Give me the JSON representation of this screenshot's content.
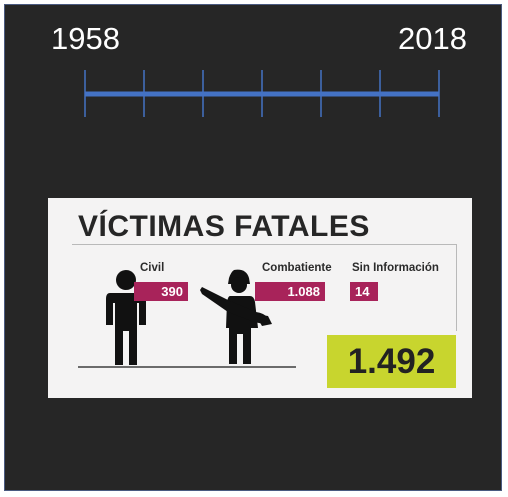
{
  "timeline": {
    "start_year": "1958",
    "end_year": "2018",
    "line_color": "#4472c4",
    "tick_count": 7
  },
  "card": {
    "title": "VÍCTIMAS FATALES",
    "civil": {
      "label": "Civil",
      "value": "390"
    },
    "combatiente": {
      "label": "Combatiente",
      "value": "1.088"
    },
    "sin_informacion": {
      "label": "Sin Información",
      "value": "14"
    },
    "total": "1.492",
    "colors": {
      "badge": "#a8235a",
      "total_bg": "#c8d52e",
      "background": "#f4f3f3"
    }
  },
  "icons": {
    "civilian": "person-standing-icon",
    "combatant": "soldier-with-rifle-icon"
  }
}
